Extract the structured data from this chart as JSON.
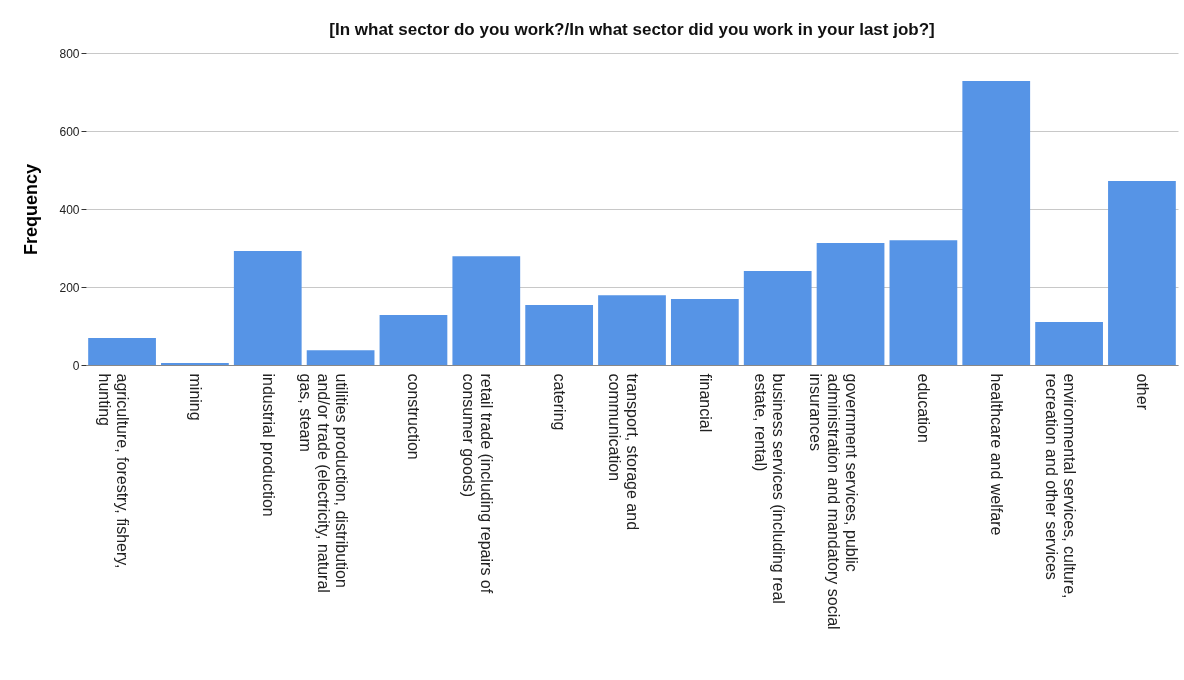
{
  "chart_data": {
    "type": "bar",
    "title": "[In what sector do you work?/In what sector did you work in your last job?]",
    "ylabel": "Frequency",
    "categories": [
      "agriculture, forestry, fishery, hunting",
      "mining",
      "industrial production",
      "utilities production, distribution and/or trade (electricity, natural gas, steam",
      "construction",
      "retail trade (including repairs of consumer goods)",
      "catering",
      "transport, storage and communication",
      "financial",
      "business services (including real estate, rental)",
      "government services, public administration and mandatory social insurances",
      "education",
      "healthcare and welfare",
      "environmental services, culture, recreation and other services",
      "other"
    ],
    "values": [
      69,
      5,
      292,
      38,
      128,
      279,
      154,
      179,
      169,
      241,
      313,
      320,
      728,
      110,
      472
    ],
    "color": "#5694e6",
    "ylim": [
      0,
      800
    ],
    "yticks": [
      0,
      200,
      400,
      600,
      800
    ],
    "grid": "y"
  }
}
